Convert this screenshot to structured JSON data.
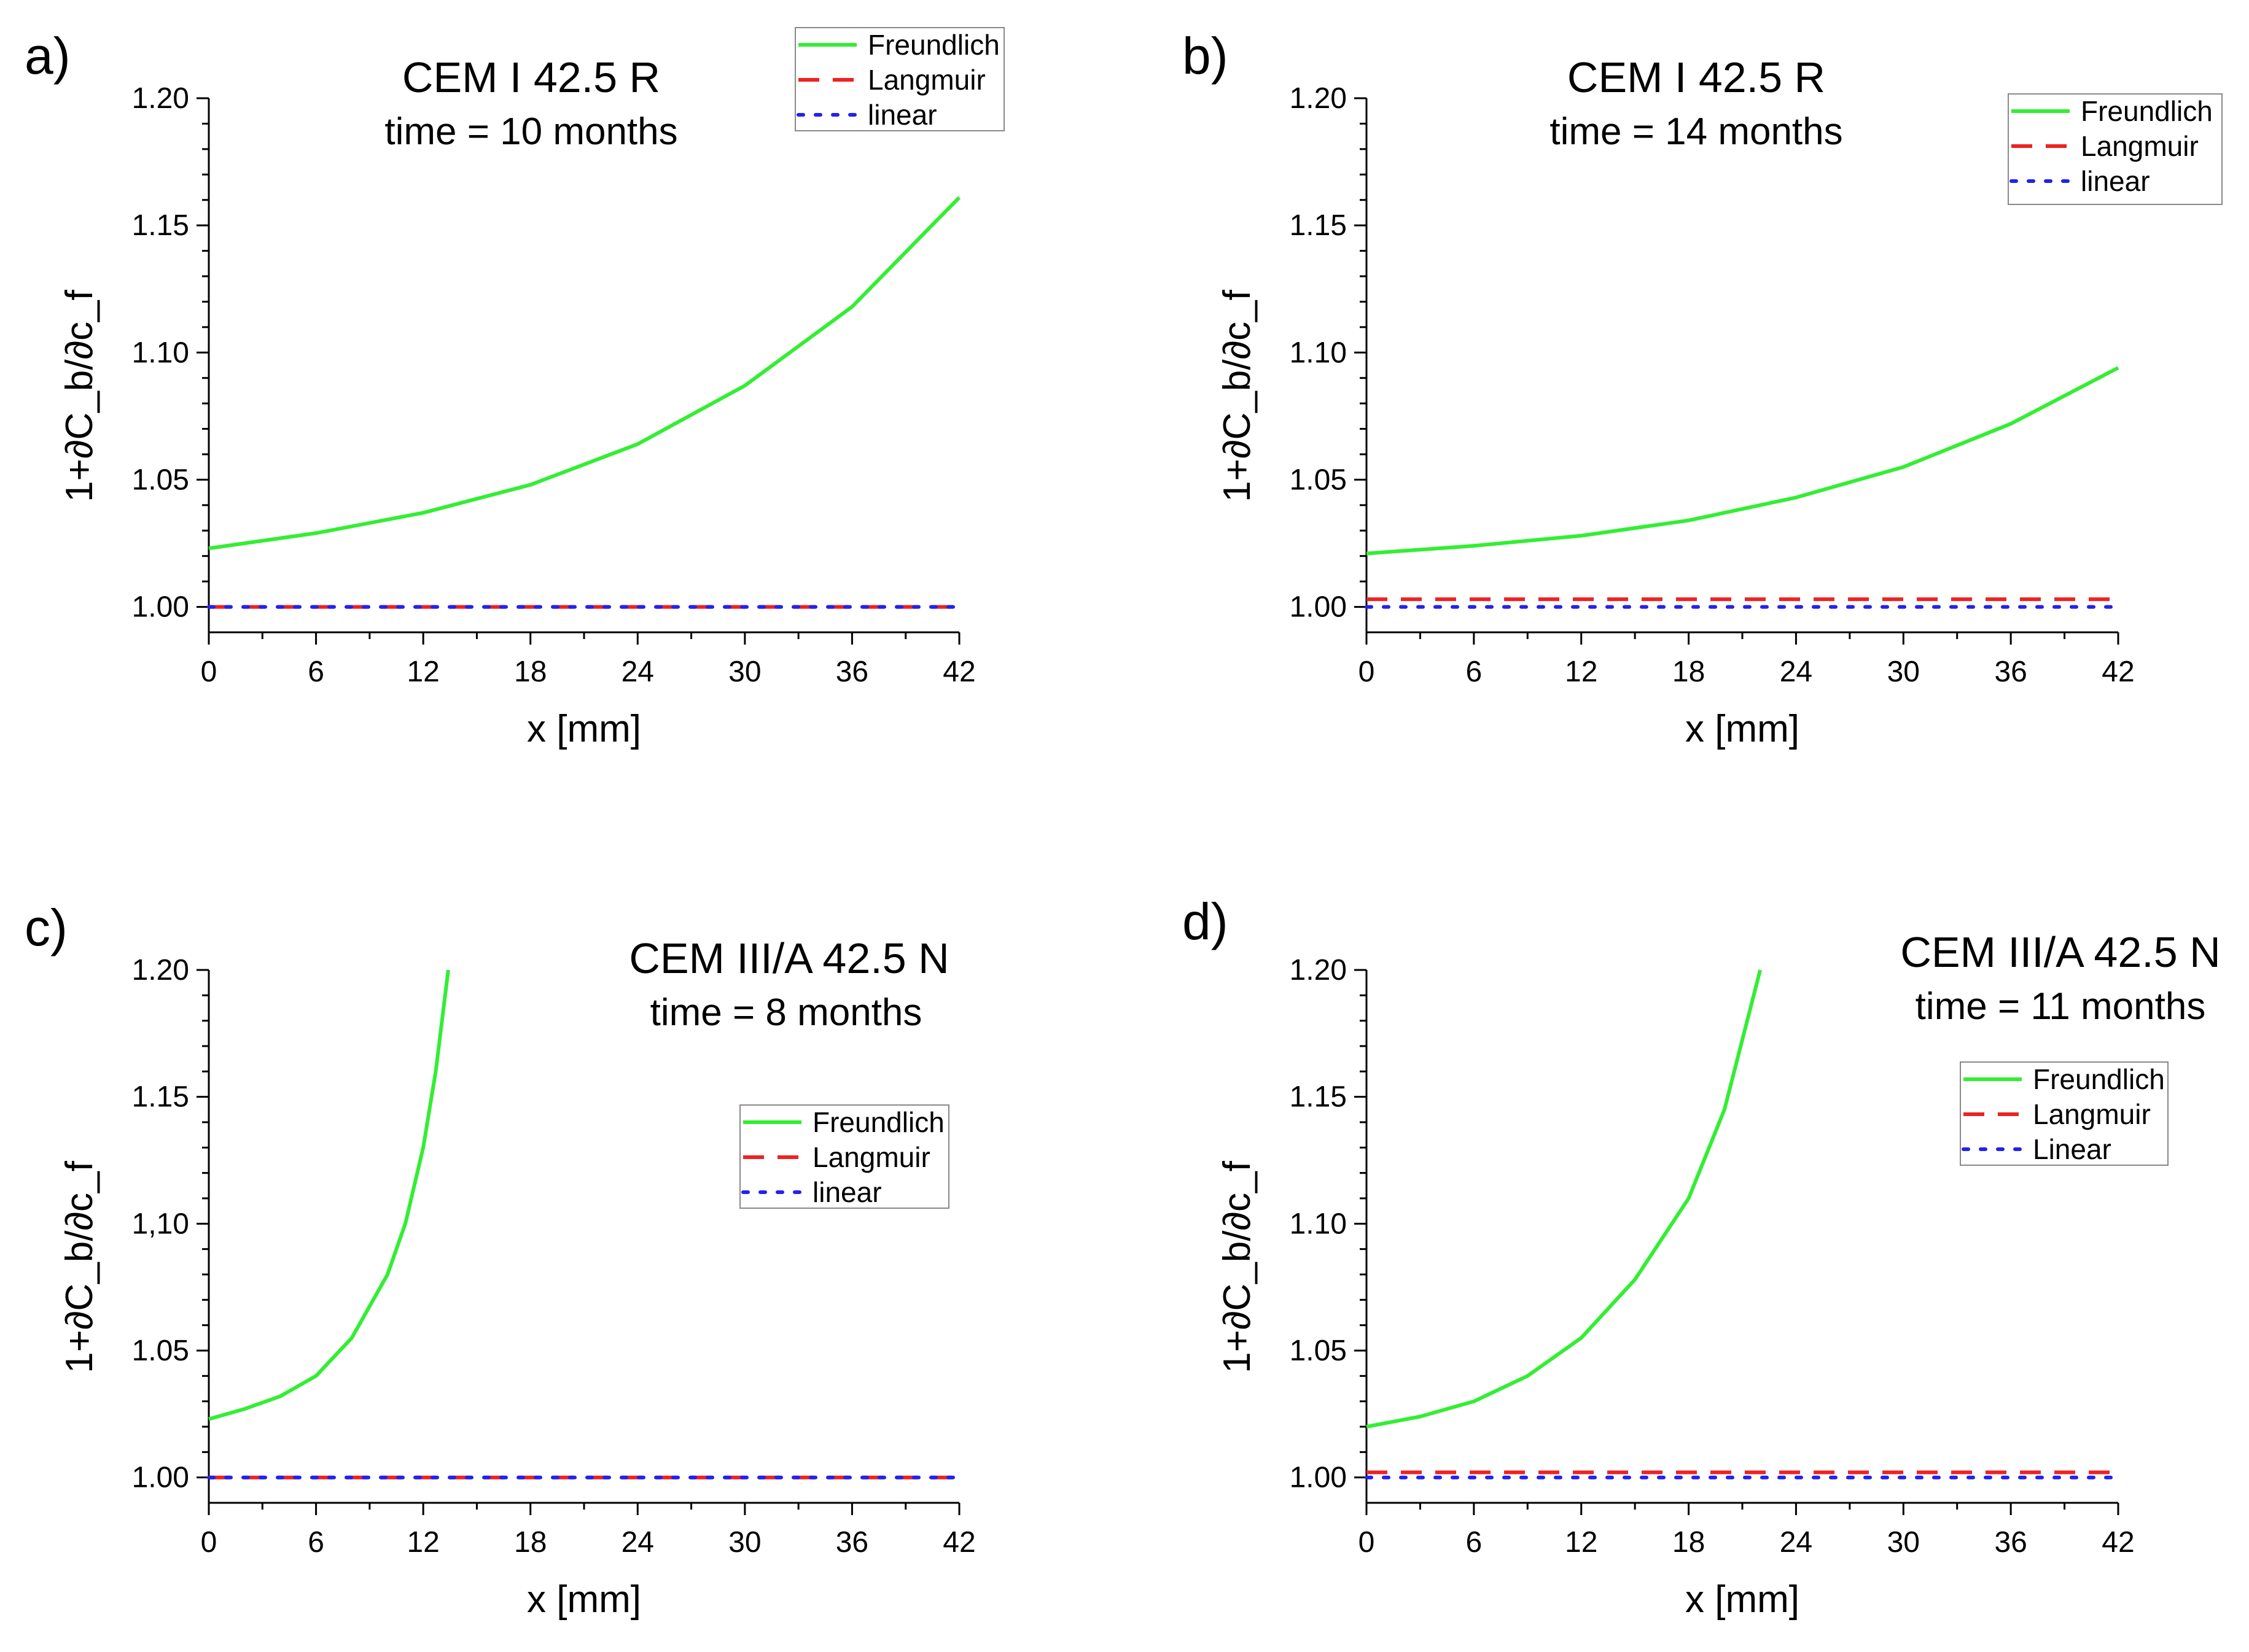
{
  "chart_data": [
    {
      "type": "line",
      "panel": "a)",
      "title": "CEM I 42.5 R",
      "subtitle": "time = 10 months",
      "xlabel": "x [mm]",
      "ylabel": "1+∂C_b/∂c_f",
      "xlim": [
        0,
        42
      ],
      "ylim": [
        0.99,
        1.2
      ],
      "xticks": [
        "0",
        "6",
        "12",
        "18",
        "24",
        "30",
        "36",
        "42"
      ],
      "yticks": [
        "1.00",
        "1.05",
        "1.10",
        "1.15",
        "1.20"
      ],
      "legend": [
        "Freundlich",
        "Langmuir",
        "linear"
      ],
      "legend_position": "top-right",
      "series": [
        {
          "name": "Freundlich",
          "x": [
            0,
            6,
            12,
            18,
            24,
            30,
            36,
            42
          ],
          "values": [
            1.023,
            1.029,
            1.037,
            1.048,
            1.064,
            1.087,
            1.118,
            1.161
          ]
        },
        {
          "name": "Langmuir",
          "x": [
            0,
            42
          ],
          "values": [
            1.0,
            1.0
          ]
        },
        {
          "name": "linear",
          "x": [
            0,
            42
          ],
          "values": [
            1.0,
            1.0
          ]
        }
      ]
    },
    {
      "type": "line",
      "panel": "b)",
      "title": "CEM I 42.5 R",
      "subtitle": "time = 14 months",
      "xlabel": "x [mm]",
      "ylabel": "1+∂C_b/∂c_f",
      "xlim": [
        0,
        42
      ],
      "ylim": [
        0.99,
        1.2
      ],
      "xticks": [
        "0",
        "6",
        "12",
        "18",
        "24",
        "30",
        "36",
        "42"
      ],
      "yticks": [
        "1.00",
        "1.05",
        "1.10",
        "1.15",
        "1.20"
      ],
      "legend": [
        "Freundlich",
        "Langmuir",
        "linear"
      ],
      "legend_position": "top-right",
      "series": [
        {
          "name": "Freundlich",
          "x": [
            0,
            6,
            12,
            18,
            24,
            30,
            36,
            42
          ],
          "values": [
            1.021,
            1.024,
            1.028,
            1.034,
            1.043,
            1.055,
            1.072,
            1.094
          ]
        },
        {
          "name": "Langmuir",
          "x": [
            0,
            42
          ],
          "values": [
            1.003,
            1.003
          ]
        },
        {
          "name": "linear",
          "x": [
            0,
            42
          ],
          "values": [
            1.0,
            1.0
          ]
        }
      ]
    },
    {
      "type": "line",
      "panel": "c)",
      "title": "CEM III/A 42.5 N",
      "subtitle": "time = 8 months",
      "xlabel": "x [mm]",
      "ylabel": "1+∂C_b/∂c_f",
      "xlim": [
        0,
        42
      ],
      "ylim": [
        0.99,
        1.2
      ],
      "xticks": [
        "0",
        "6",
        "12",
        "18",
        "24",
        "30",
        "36",
        "42"
      ],
      "yticks": [
        "1.00",
        "1.05",
        "1,10",
        "1.15",
        "1.20"
      ],
      "legend": [
        "Freundlich",
        "Langmuir",
        "linear"
      ],
      "legend_position": "center-right",
      "series": [
        {
          "name": "Freundlich",
          "x": [
            0,
            2,
            4,
            6,
            8,
            10,
            11,
            12,
            12.7,
            13.4
          ],
          "values": [
            1.023,
            1.027,
            1.032,
            1.04,
            1.055,
            1.08,
            1.1,
            1.13,
            1.16,
            1.2
          ]
        },
        {
          "name": "Langmuir",
          "x": [
            0,
            42
          ],
          "values": [
            1.0,
            1.0
          ]
        },
        {
          "name": "linear",
          "x": [
            0,
            42
          ],
          "values": [
            1.0,
            1.0
          ]
        }
      ]
    },
    {
      "type": "line",
      "panel": "d)",
      "title": "CEM III/A 42.5 N",
      "subtitle": "time = 11 months",
      "xlabel": "x [mm]",
      "ylabel": "1+∂C_b/∂c_f",
      "xlim": [
        0,
        42
      ],
      "ylim": [
        0.99,
        1.2
      ],
      "xticks": [
        "0",
        "6",
        "12",
        "18",
        "24",
        "30",
        "36",
        "42"
      ],
      "yticks": [
        "1.00",
        "1.05",
        "1.10",
        "1.15",
        "1.20"
      ],
      "legend": [
        "Freundlich",
        "Langmuir",
        "Linear"
      ],
      "legend_position": "top-right",
      "series": [
        {
          "name": "Freundlich",
          "x": [
            0,
            3,
            6,
            9,
            12,
            15,
            18,
            20,
            22
          ],
          "values": [
            1.02,
            1.024,
            1.03,
            1.04,
            1.055,
            1.078,
            1.11,
            1.145,
            1.2
          ]
        },
        {
          "name": "Langmuir",
          "x": [
            0,
            42
          ],
          "values": [
            1.002,
            1.002
          ]
        },
        {
          "name": "Linear",
          "x": [
            0,
            42
          ],
          "values": [
            1.0,
            1.0
          ]
        }
      ]
    }
  ],
  "colors": {
    "freundlich": "#33ee33",
    "langmuir": "#ee2222",
    "linear": "#2222ee",
    "axis": "#000000"
  }
}
